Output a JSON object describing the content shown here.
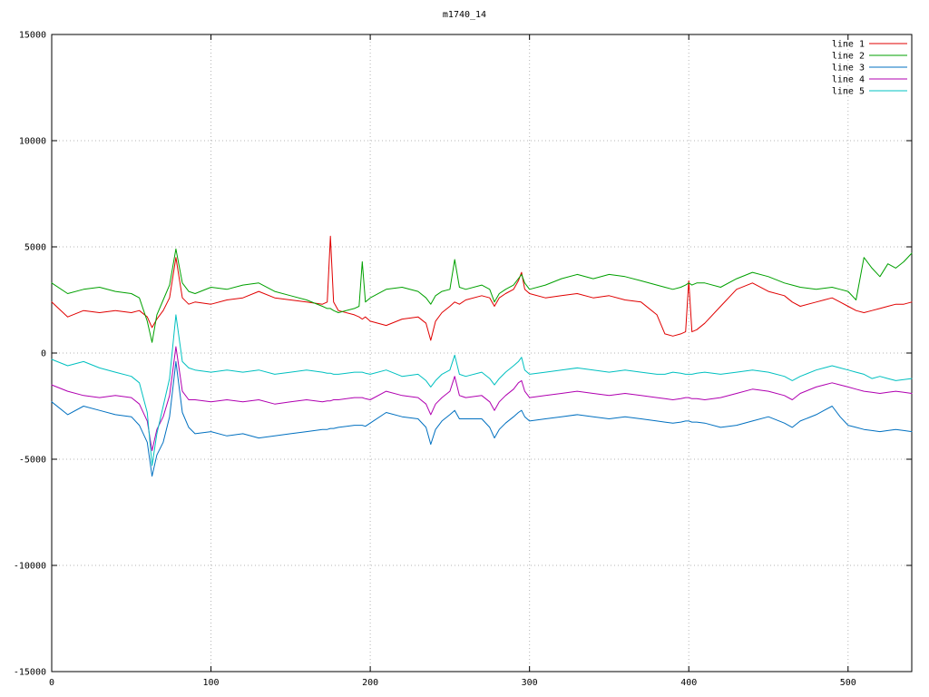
{
  "chart_data": {
    "type": "line",
    "title": "m1740_14",
    "xlabel": "",
    "ylabel": "",
    "xlim": [
      0,
      540
    ],
    "ylim": [
      -15000,
      15000
    ],
    "x_ticks": [
      0,
      100,
      200,
      300,
      400,
      500
    ],
    "y_ticks": [
      -15000,
      -10000,
      -5000,
      0,
      5000,
      10000,
      15000
    ],
    "grid": "dotted",
    "legend_position": "top-right",
    "background": "#ffffff",
    "x": [
      0,
      10,
      20,
      30,
      40,
      50,
      55,
      60,
      63,
      66,
      70,
      74,
      78,
      82,
      86,
      90,
      100,
      110,
      120,
      130,
      140,
      150,
      160,
      170,
      173,
      175,
      177,
      180,
      190,
      193,
      195,
      197,
      200,
      210,
      220,
      230,
      235,
      238,
      241,
      245,
      250,
      253,
      256,
      260,
      270,
      275,
      278,
      281,
      285,
      290,
      293,
      295,
      297,
      300,
      310,
      320,
      330,
      340,
      350,
      360,
      370,
      380,
      385,
      390,
      395,
      398,
      400,
      402,
      405,
      410,
      420,
      430,
      440,
      450,
      460,
      465,
      470,
      480,
      485,
      490,
      495,
      500,
      505,
      510,
      515,
      520,
      525,
      530,
      535,
      540
    ],
    "series": [
      {
        "name": "line 1",
        "color": "#e00000",
        "values": [
          2400,
          1700,
          2000,
          1900,
          2000,
          1900,
          2000,
          1700,
          1200,
          1600,
          2000,
          2600,
          4500,
          2600,
          2300,
          2400,
          2300,
          2500,
          2600,
          2900,
          2600,
          2500,
          2400,
          2300,
          2400,
          5500,
          2400,
          2000,
          1800,
          1700,
          1600,
          1700,
          1500,
          1300,
          1600,
          1700,
          1400,
          600,
          1500,
          1900,
          2200,
          2400,
          2300,
          2500,
          2700,
          2600,
          2200,
          2600,
          2800,
          3000,
          3400,
          3800,
          3000,
          2800,
          2600,
          2700,
          2800,
          2600,
          2700,
          2500,
          2400,
          1800,
          900,
          800,
          900,
          1000,
          3400,
          1000,
          1100,
          1400,
          2200,
          3000,
          3300,
          2900,
          2700,
          2400,
          2200,
          2400,
          2500,
          2600,
          2400,
          2200,
          2000,
          1900,
          2000,
          2100,
          2200,
          2300,
          2300,
          2400
        ]
      },
      {
        "name": "line 2",
        "color": "#00a000",
        "values": [
          3300,
          2800,
          3000,
          3100,
          2900,
          2800,
          2600,
          1500,
          500,
          1800,
          2500,
          3200,
          4900,
          3300,
          2900,
          2800,
          3100,
          3000,
          3200,
          3300,
          2900,
          2700,
          2500,
          2200,
          2100,
          2100,
          2000,
          1900,
          2100,
          2200,
          4300,
          2400,
          2600,
          3000,
          3100,
          2900,
          2600,
          2300,
          2700,
          2900,
          3000,
          4400,
          3100,
          3000,
          3200,
          3000,
          2400,
          2800,
          3000,
          3200,
          3500,
          3700,
          3300,
          3000,
          3200,
          3500,
          3700,
          3500,
          3700,
          3600,
          3400,
          3200,
          3100,
          3000,
          3100,
          3200,
          3300,
          3200,
          3300,
          3300,
          3100,
          3500,
          3800,
          3600,
          3300,
          3200,
          3100,
          3000,
          3050,
          3100,
          3000,
          2900,
          2500,
          4500,
          4000,
          3600,
          4200,
          4000,
          4300,
          4700
        ]
      },
      {
        "name": "line 3",
        "color": "#0070c0",
        "values": [
          -2300,
          -2900,
          -2500,
          -2700,
          -2900,
          -3000,
          -3400,
          -4200,
          -5800,
          -4800,
          -4200,
          -3000,
          -400,
          -2800,
          -3500,
          -3800,
          -3700,
          -3900,
          -3800,
          -4000,
          -3900,
          -3800,
          -3700,
          -3600,
          -3600,
          -3550,
          -3550,
          -3500,
          -3400,
          -3400,
          -3400,
          -3450,
          -3300,
          -2800,
          -3000,
          -3100,
          -3500,
          -4300,
          -3600,
          -3200,
          -2900,
          -2700,
          -3100,
          -3100,
          -3100,
          -3500,
          -4000,
          -3600,
          -3300,
          -3000,
          -2800,
          -2700,
          -3000,
          -3200,
          -3100,
          -3000,
          -2900,
          -3000,
          -3100,
          -3000,
          -3100,
          -3200,
          -3250,
          -3300,
          -3250,
          -3200,
          -3200,
          -3250,
          -3250,
          -3300,
          -3500,
          -3400,
          -3200,
          -3000,
          -3300,
          -3500,
          -3200,
          -2900,
          -2700,
          -2500,
          -3000,
          -3400,
          -3500,
          -3600,
          -3650,
          -3700,
          -3650,
          -3600,
          -3650,
          -3700
        ]
      },
      {
        "name": "line 4",
        "color": "#b000b0",
        "values": [
          -1500,
          -1800,
          -2000,
          -2100,
          -2000,
          -2100,
          -2400,
          -3200,
          -4600,
          -3600,
          -3000,
          -2000,
          300,
          -1800,
          -2200,
          -2200,
          -2300,
          -2200,
          -2300,
          -2200,
          -2400,
          -2300,
          -2200,
          -2300,
          -2250,
          -2250,
          -2200,
          -2200,
          -2100,
          -2100,
          -2100,
          -2150,
          -2200,
          -1800,
          -2000,
          -2100,
          -2400,
          -2900,
          -2400,
          -2100,
          -1800,
          -1100,
          -2000,
          -2100,
          -2000,
          -2300,
          -2700,
          -2300,
          -2000,
          -1700,
          -1400,
          -1300,
          -1800,
          -2100,
          -2000,
          -1900,
          -1800,
          -1900,
          -2000,
          -1900,
          -2000,
          -2100,
          -2150,
          -2200,
          -2150,
          -2100,
          -2100,
          -2150,
          -2150,
          -2200,
          -2100,
          -1900,
          -1700,
          -1800,
          -2000,
          -2200,
          -1900,
          -1600,
          -1500,
          -1400,
          -1500,
          -1600,
          -1700,
          -1800,
          -1850,
          -1900,
          -1850,
          -1800,
          -1850,
          -1900
        ]
      },
      {
        "name": "line 5",
        "color": "#00c0c0",
        "values": [
          -300,
          -600,
          -400,
          -700,
          -900,
          -1100,
          -1400,
          -2800,
          -5300,
          -3800,
          -2500,
          -1200,
          1800,
          -400,
          -700,
          -800,
          -900,
          -800,
          -900,
          -800,
          -1000,
          -900,
          -800,
          -900,
          -950,
          -950,
          -1000,
          -1000,
          -900,
          -900,
          -900,
          -950,
          -1000,
          -800,
          -1100,
          -1000,
          -1300,
          -1600,
          -1300,
          -1000,
          -800,
          -100,
          -1000,
          -1100,
          -900,
          -1200,
          -1500,
          -1200,
          -900,
          -600,
          -400,
          -200,
          -800,
          -1000,
          -900,
          -800,
          -700,
          -800,
          -900,
          -800,
          -900,
          -1000,
          -1000,
          -900,
          -950,
          -1000,
          -1000,
          -1000,
          -950,
          -900,
          -1000,
          -900,
          -800,
          -900,
          -1100,
          -1300,
          -1100,
          -800,
          -700,
          -600,
          -700,
          -800,
          -900,
          -1000,
          -1200,
          -1100,
          -1200,
          -1300,
          -1250,
          -1200
        ]
      }
    ]
  }
}
